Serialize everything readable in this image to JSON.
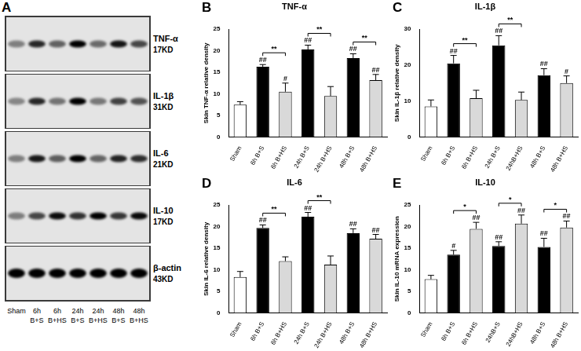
{
  "blot": {
    "panel_label": "A",
    "lanes": [
      "Sham",
      "6h B+S",
      "6h B+HS",
      "24h B+S",
      "24h B+HS",
      "48h B+S",
      "48h B+HS"
    ],
    "rows": [
      {
        "name": "TNF-α",
        "size": "17KD"
      },
      {
        "name": "IL-1β",
        "size": "31KD"
      },
      {
        "name": "IL-6",
        "size": "21KD"
      },
      {
        "name": "IL-10",
        "size": "17KD"
      },
      {
        "name": "β-actin",
        "size": "43KD"
      }
    ]
  },
  "chart_data": [
    {
      "panel_label": "B",
      "type": "bar",
      "title": "TNF-α",
      "y_label": "Skin TNF-α relative density",
      "categories": [
        "Sham",
        "6h B+S",
        "6h B+HS",
        "24h B+S",
        "24h B+HS",
        "48h B+S",
        "48h B+HS"
      ],
      "values": [
        7.5,
        16.3,
        10.5,
        20.3,
        9.5,
        18.3,
        13.2
      ],
      "errors": [
        0.7,
        0.5,
        2.0,
        1.0,
        2.2,
        1.0,
        1.3
      ],
      "colors": [
        "#ffffff",
        "#000000",
        "#d9d9d9",
        "#000000",
        "#d9d9d9",
        "#000000",
        "#d9d9d9"
      ],
      "annotations": [
        null,
        "##",
        "#",
        "##",
        null,
        "##",
        "##"
      ],
      "comparisons": [
        {
          "from": 1,
          "to": 2,
          "label": "**"
        },
        {
          "from": 3,
          "to": 4,
          "label": "**"
        },
        {
          "from": 5,
          "to": 6,
          "label": "**"
        }
      ],
      "ylim": [
        0,
        25
      ],
      "yticks": [
        0,
        5,
        10,
        15,
        20,
        25
      ],
      "grid": false
    },
    {
      "panel_label": "C",
      "type": "bar",
      "title": "IL-1β",
      "y_label": "Skin IL-1β relative density",
      "categories": [
        "Sham",
        "6h B+S",
        "6h B+HS",
        "24h B+S",
        "24hB+HS",
        "48h B+S",
        "48h B+HS"
      ],
      "values": [
        8.5,
        20.5,
        10.8,
        25.5,
        10.3,
        17.2,
        15.0
      ],
      "errors": [
        1.8,
        2.2,
        2.2,
        2.7,
        2.2,
        1.8,
        2.0
      ],
      "colors": [
        "#ffffff",
        "#000000",
        "#d9d9d9",
        "#000000",
        "#d9d9d9",
        "#000000",
        "#d9d9d9"
      ],
      "annotations": [
        null,
        "##",
        null,
        "##",
        null,
        "##",
        "#"
      ],
      "comparisons": [
        {
          "from": 1,
          "to": 2,
          "label": "**"
        },
        {
          "from": 3,
          "to": 4,
          "label": "**"
        }
      ],
      "ylim": [
        0,
        30
      ],
      "yticks": [
        0,
        10,
        20,
        30
      ],
      "grid": false
    },
    {
      "panel_label": "D",
      "type": "bar",
      "title": "IL-6",
      "y_label": "Skin IL-6 relative density",
      "categories": [
        "Sham",
        "6h B+S",
        "6h B+HS",
        "24h B+S",
        "24h B+HS",
        "48h B+S",
        "48h B+HS"
      ],
      "values": [
        8.3,
        19.7,
        12.0,
        22.3,
        11.2,
        18.5,
        17.2
      ],
      "errors": [
        1.3,
        0.7,
        1.0,
        1.0,
        2.0,
        1.0,
        1.0
      ],
      "colors": [
        "#ffffff",
        "#000000",
        "#d9d9d9",
        "#000000",
        "#d9d9d9",
        "#000000",
        "#d9d9d9"
      ],
      "annotations": [
        null,
        "##",
        null,
        "##",
        null,
        "##",
        "##"
      ],
      "comparisons": [
        {
          "from": 1,
          "to": 2,
          "label": "**"
        },
        {
          "from": 3,
          "to": 4,
          "label": "**"
        }
      ],
      "ylim": [
        0,
        25
      ],
      "yticks": [
        0,
        5,
        10,
        15,
        20,
        25
      ],
      "grid": false
    },
    {
      "panel_label": "E",
      "type": "bar",
      "title": "IL-10",
      "y_label": "Skin IL-10 mRNA expression",
      "categories": [
        "Sham",
        "6h B+S",
        "6h B+HS",
        "24hB+S",
        "24hB+HS",
        "48h B+S",
        "48h B+HS"
      ],
      "values": [
        7.8,
        13.5,
        19.5,
        15.5,
        20.7,
        15.3,
        19.8
      ],
      "errors": [
        0.9,
        1.0,
        1.5,
        1.0,
        2.0,
        2.0,
        1.5
      ],
      "colors": [
        "#ffffff",
        "#000000",
        "#d9d9d9",
        "#000000",
        "#d9d9d9",
        "#000000",
        "#d9d9d9"
      ],
      "annotations": [
        null,
        "#",
        "##",
        "##",
        "##",
        "##",
        "##"
      ],
      "comparisons": [
        {
          "from": 1,
          "to": 2,
          "label": "*"
        },
        {
          "from": 3,
          "to": 4,
          "label": "*"
        },
        {
          "from": 5,
          "to": 6,
          "label": "*"
        }
      ],
      "ylim": [
        0,
        25
      ],
      "yticks": [
        0,
        5,
        10,
        15,
        20,
        25
      ],
      "grid": false
    }
  ]
}
